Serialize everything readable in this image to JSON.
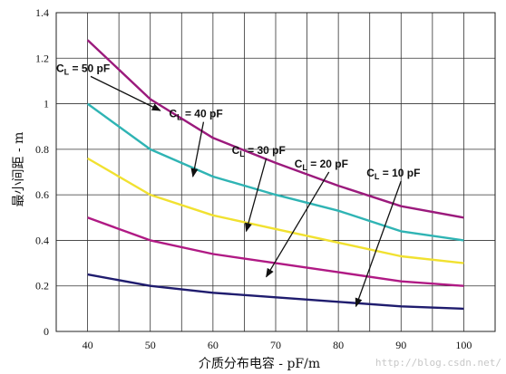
{
  "chart_data": {
    "type": "line",
    "title": "",
    "xlabel": "介质分布电容 - pF/m",
    "ylabel": "最小间距 - m",
    "xlim": [
      35,
      105
    ],
    "ylim": [
      0,
      1.4
    ],
    "x_ticks": [
      40,
      50,
      60,
      70,
      80,
      90,
      100
    ],
    "y_ticks": [
      {
        "value": 0,
        "label": "0"
      },
      {
        "value": 0.2,
        "label": "0.2"
      },
      {
        "value": 0.4,
        "label": "0.4"
      },
      {
        "value": 0.6,
        "label": "0.6"
      },
      {
        "value": 0.8,
        "label": "0.8"
      },
      {
        "value": 1.0,
        "label": "1"
      },
      {
        "value": 1.2,
        "label": "1.2"
      },
      {
        "value": 1.4,
        "label": "1.4"
      }
    ],
    "grid": true,
    "series": [
      {
        "name": "CL = 50 pF",
        "color": "#9b1a7c",
        "x": [
          40,
          50,
          60,
          70,
          80,
          90,
          100
        ],
        "y": [
          1.28,
          1.02,
          0.85,
          0.74,
          0.64,
          0.55,
          0.5
        ]
      },
      {
        "name": "CL = 40 pF",
        "color": "#2fb4b4",
        "x": [
          40,
          50,
          60,
          70,
          80,
          90,
          100
        ],
        "y": [
          1.0,
          0.8,
          0.68,
          0.6,
          0.53,
          0.44,
          0.4
        ]
      },
      {
        "name": "CL = 30 pF",
        "color": "#f1e130",
        "x": [
          40,
          50,
          60,
          70,
          80,
          90,
          100
        ],
        "y": [
          0.76,
          0.6,
          0.51,
          0.45,
          0.39,
          0.33,
          0.3
        ]
      },
      {
        "name": "CL = 20 pF",
        "color": "#b01a84",
        "x": [
          40,
          50,
          60,
          70,
          80,
          90,
          100
        ],
        "y": [
          0.5,
          0.4,
          0.34,
          0.3,
          0.26,
          0.22,
          0.2
        ]
      },
      {
        "name": "CL = 10 pF",
        "color": "#1f1c6e",
        "x": [
          40,
          50,
          60,
          70,
          80,
          90,
          100
        ],
        "y": [
          0.25,
          0.2,
          0.17,
          0.15,
          0.13,
          0.11,
          0.1
        ]
      }
    ],
    "annotations": [
      {
        "prefix": "C",
        "sub": "L",
        "text": " = 50 pF",
        "label_at": [
          35,
          1.14
        ],
        "arrow_to": [
          51.6,
          0.97
        ]
      },
      {
        "prefix": "C",
        "sub": "L",
        "text": " = 40 pF",
        "label_at": [
          53,
          0.94
        ],
        "arrow_to": [
          56.8,
          0.68
        ]
      },
      {
        "prefix": "C",
        "sub": "L",
        "text": " = 30 pF",
        "label_at": [
          63,
          0.78
        ],
        "arrow_to": [
          65.3,
          0.44
        ]
      },
      {
        "prefix": "C",
        "sub": "L",
        "text": " = 20 pF",
        "label_at": [
          73,
          0.72
        ],
        "arrow_to": [
          68.5,
          0.24
        ]
      },
      {
        "prefix": "C",
        "sub": "L",
        "text": " = 10 pF",
        "label_at": [
          84.5,
          0.68
        ],
        "arrow_to": [
          82.8,
          0.11
        ]
      }
    ]
  },
  "watermark": "http://blog.csdn.net/"
}
